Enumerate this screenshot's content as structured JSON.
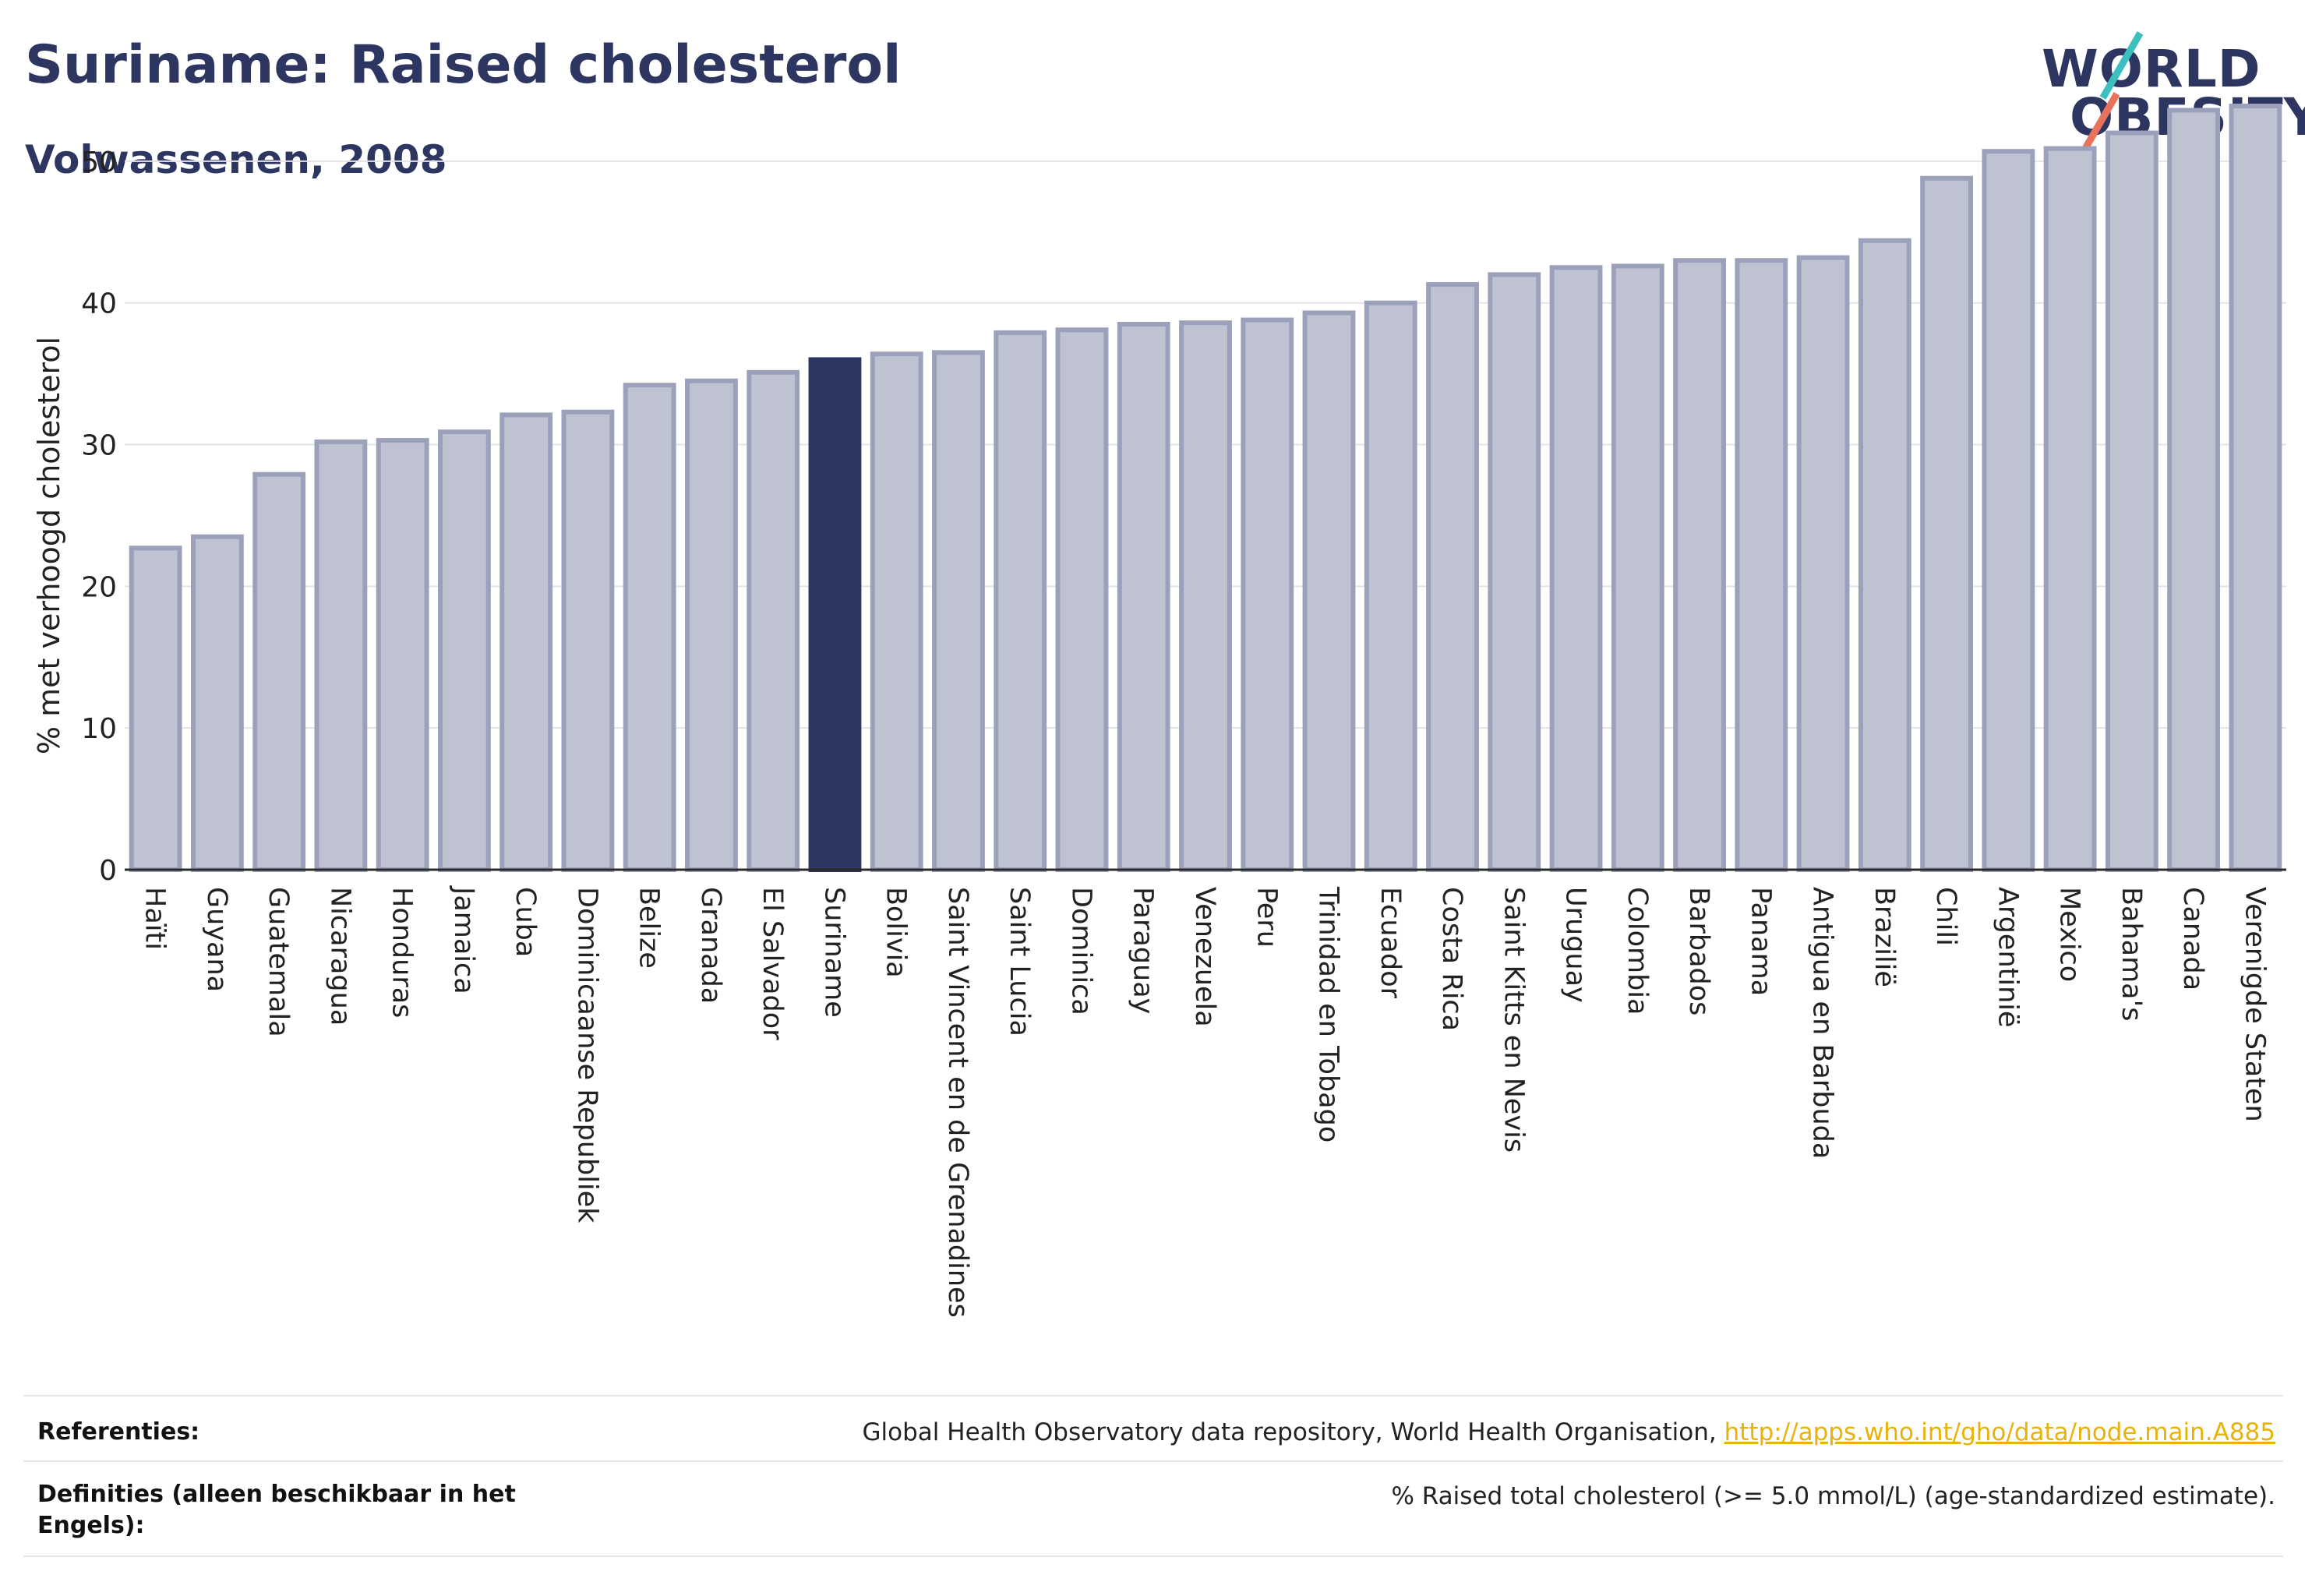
{
  "header": {
    "title": "Suriname: Raised cholesterol",
    "subtitle": "Volwassenen, 2008"
  },
  "logo": {
    "line1": "WORLD",
    "line2": "OBESITY",
    "colors": {
      "text": "#2d3561",
      "slash_top": "#3bbfbf",
      "slash_bottom": "#e8735a"
    }
  },
  "chart_data": {
    "type": "bar",
    "ylabel": "% met verhoogd cholesterol",
    "xlabel": "",
    "ylim": [
      0,
      55
    ],
    "yticks": [
      0,
      10,
      20,
      30,
      40,
      50
    ],
    "grid": true,
    "highlight": "Suriname",
    "colors": {
      "bar": "#bfc2d0",
      "bar_border": "#9ba1bb",
      "highlight": "#2d3561"
    },
    "categories": [
      "Haïti",
      "Guyana",
      "Guatemala",
      "Nicaragua",
      "Honduras",
      "Jamaica",
      "Cuba",
      "Dominicaanse Republiek",
      "Belize",
      "Granada",
      "El Salvador",
      "Suriname",
      "Bolivia",
      "Saint Vincent en de Grenadines",
      "Saint Lucia",
      "Dominica",
      "Paraguay",
      "Venezuela",
      "Peru",
      "Trinidad en Tobago",
      "Ecuador",
      "Costa Rica",
      "Saint Kitts en Nevis",
      "Uruguay",
      "Colombia",
      "Barbados",
      "Panama",
      "Antigua en Barbuda",
      "Brazilië",
      "Chili",
      "Argentinië",
      "Mexico",
      "Bahama's",
      "Canada",
      "Verenigde Staten"
    ],
    "values": [
      22.7,
      23.5,
      27.9,
      30.2,
      30.3,
      30.9,
      32.1,
      32.3,
      34.2,
      34.5,
      35.1,
      36.0,
      36.4,
      36.5,
      37.9,
      38.1,
      38.5,
      38.6,
      38.8,
      39.3,
      40.0,
      41.3,
      42.0,
      42.5,
      42.6,
      43.0,
      43.0,
      43.2,
      44.4,
      48.8,
      50.7,
      50.9,
      52.0,
      53.6,
      53.9
    ]
  },
  "footer": {
    "references_label": "Referenties:",
    "references_text": "Global Health Observatory data repository, World Health Organisation, ",
    "references_link": "http://apps.who.int/gho/data/node.main.A885",
    "definitions_label": "Definities (alleen beschikbaar in het Engels):",
    "definitions_text": "% Raised total cholesterol (>= 5.0 mmol/L) (age-standardized estimate)."
  }
}
